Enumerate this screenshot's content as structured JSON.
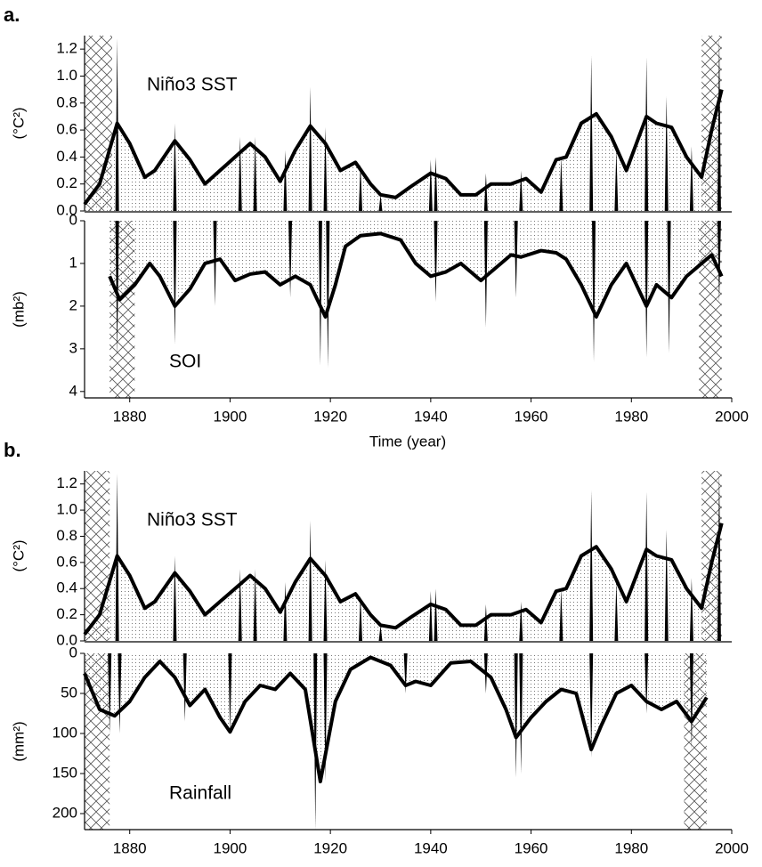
{
  "chart_data": [
    {
      "type": "line",
      "panel_label": "a.",
      "annotation": "Niño3 SST",
      "ylabel": "(°C²)",
      "xlim": [
        1871,
        2000
      ],
      "ylim": [
        0,
        1.3
      ],
      "yticks": [
        {
          "value": 0,
          "label": "0.0"
        },
        0.2,
        0.4,
        0.6,
        0.8,
        {
          "value": 1,
          "label": "1.0"
        },
        1.2
      ],
      "inverted": false,
      "color": "#000000",
      "shaded_regions": [
        [
          1871,
          1876.5
        ],
        [
          1994,
          1998
        ]
      ],
      "x": [
        1871,
        1874,
        1877.5,
        1880,
        1883,
        1885,
        1889,
        1892,
        1895,
        1898,
        1901,
        1904,
        1907,
        1910,
        1913,
        1916,
        1919,
        1922,
        1925,
        1928,
        1930,
        1933,
        1936,
        1940,
        1943,
        1946,
        1949,
        1952,
        1956,
        1959,
        1962,
        1965,
        1967,
        1970,
        1973,
        1976,
        1979,
        1983,
        1985,
        1988,
        1991,
        1994,
        1996,
        1998
      ],
      "values": [
        0.05,
        0.2,
        0.65,
        0.5,
        0.25,
        0.3,
        0.52,
        0.38,
        0.2,
        0.3,
        0.4,
        0.5,
        0.4,
        0.22,
        0.45,
        0.63,
        0.5,
        0.3,
        0.36,
        0.2,
        0.12,
        0.1,
        0.18,
        0.28,
        0.24,
        0.12,
        0.12,
        0.2,
        0.2,
        0.24,
        0.14,
        0.38,
        0.4,
        0.65,
        0.72,
        0.55,
        0.3,
        0.7,
        0.65,
        0.62,
        0.4,
        0.25,
        0.6,
        0.9
      ],
      "spike_x": [
        1877.5,
        1889,
        1902,
        1905,
        1911,
        1916,
        1919,
        1926,
        1930,
        1940,
        1941,
        1951,
        1958,
        1966,
        1972,
        1977,
        1983,
        1987,
        1992,
        1997.5
      ],
      "spike_values": [
        1.28,
        0.65,
        0.55,
        0.55,
        0.45,
        0.92,
        0.62,
        0.35,
        0.12,
        0.38,
        0.4,
        0.28,
        0.3,
        0.4,
        1.15,
        0.45,
        1.14,
        0.85,
        0.48,
        1.3
      ]
    },
    {
      "type": "line",
      "annotation": "SOI",
      "ylabel": "(mb²)",
      "xlabel": "Time (year)",
      "xlim": [
        1871,
        2000
      ],
      "ylim": [
        0,
        4.15
      ],
      "yticks": [
        0,
        1,
        2,
        3,
        4
      ],
      "xticks": [
        1880,
        1900,
        1920,
        1940,
        1960,
        1980,
        2000
      ],
      "inverted": true,
      "color": "#000000",
      "shaded_regions": [
        [
          1876,
          1881
        ],
        [
          1993.5,
          1998
        ]
      ],
      "x": [
        1876,
        1878,
        1881,
        1884,
        1886,
        1889,
        1892,
        1895,
        1898,
        1901,
        1904,
        1907,
        1910,
        1913,
        1916,
        1919,
        1921,
        1923,
        1926,
        1930,
        1934,
        1937,
        1940,
        1943,
        1946,
        1950,
        1953,
        1956,
        1958,
        1962,
        1965,
        1967,
        1970,
        1973,
        1976,
        1979,
        1983,
        1985,
        1988,
        1991,
        1994,
        1996,
        1998
      ],
      "values": [
        1.3,
        1.85,
        1.5,
        1.0,
        1.3,
        2.0,
        1.6,
        1.0,
        0.9,
        1.4,
        1.25,
        1.2,
        1.5,
        1.3,
        1.5,
        2.25,
        1.5,
        0.6,
        0.35,
        0.3,
        0.45,
        1.0,
        1.3,
        1.2,
        1.0,
        1.4,
        1.1,
        0.8,
        0.85,
        0.7,
        0.75,
        0.9,
        1.5,
        2.25,
        1.5,
        1.0,
        2.0,
        1.5,
        1.8,
        1.3,
        1.0,
        0.8,
        1.3
      ],
      "spike_x": [
        1877.5,
        1889,
        1897,
        1912,
        1918,
        1919.5,
        1941,
        1951,
        1957,
        1972.5,
        1983,
        1987.5,
        1997.5
      ],
      "spike_values": [
        3.2,
        2.9,
        2.0,
        1.8,
        3.4,
        3.45,
        1.9,
        2.5,
        1.8,
        3.3,
        3.2,
        3.1,
        1.9
      ]
    },
    {
      "type": "line",
      "panel_label": "b.",
      "annotation": "Niño3 SST",
      "ylabel": "(°C²)",
      "xlim": [
        1871,
        2000
      ],
      "ylim": [
        0,
        1.3
      ],
      "yticks": [
        {
          "value": 0,
          "label": "0.0"
        },
        0.2,
        0.4,
        0.6,
        0.8,
        {
          "value": 1,
          "label": "1.0"
        },
        1.2
      ],
      "inverted": false,
      "color": "#000000",
      "shaded_regions": [
        [
          1871,
          1876
        ],
        [
          1994,
          1998
        ]
      ],
      "x": [
        1871,
        1874,
        1877.5,
        1880,
        1883,
        1885,
        1889,
        1892,
        1895,
        1898,
        1901,
        1904,
        1907,
        1910,
        1913,
        1916,
        1919,
        1922,
        1925,
        1928,
        1930,
        1933,
        1936,
        1940,
        1943,
        1946,
        1949,
        1952,
        1956,
        1959,
        1962,
        1965,
        1967,
        1970,
        1973,
        1976,
        1979,
        1983,
        1985,
        1988,
        1991,
        1994,
        1996,
        1998
      ],
      "values": [
        0.05,
        0.2,
        0.65,
        0.5,
        0.25,
        0.3,
        0.52,
        0.38,
        0.2,
        0.3,
        0.4,
        0.5,
        0.4,
        0.22,
        0.45,
        0.63,
        0.5,
        0.3,
        0.36,
        0.2,
        0.12,
        0.1,
        0.18,
        0.28,
        0.24,
        0.12,
        0.12,
        0.2,
        0.2,
        0.24,
        0.14,
        0.38,
        0.4,
        0.65,
        0.72,
        0.55,
        0.3,
        0.7,
        0.65,
        0.62,
        0.4,
        0.25,
        0.6,
        0.9
      ],
      "spike_x": [
        1877.5,
        1889,
        1902,
        1905,
        1911,
        1916,
        1919,
        1926,
        1930,
        1940,
        1941,
        1951,
        1958,
        1966,
        1972,
        1977,
        1983,
        1987,
        1992,
        1997.5
      ],
      "spike_values": [
        1.28,
        0.65,
        0.55,
        0.55,
        0.45,
        0.92,
        0.62,
        0.35,
        0.12,
        0.38,
        0.4,
        0.28,
        0.3,
        0.4,
        1.15,
        0.45,
        1.14,
        0.85,
        0.48,
        1.3
      ]
    },
    {
      "type": "line",
      "annotation": "Rainfall",
      "ylabel": "(mm²)",
      "xlim": [
        1871,
        2000
      ],
      "ylim": [
        0,
        220
      ],
      "yticks": [
        0,
        50,
        100,
        150,
        200
      ],
      "xticks": [
        1880,
        1900,
        1920,
        1940,
        1960,
        1980,
        2000
      ],
      "inverted": true,
      "color": "#000000",
      "shaded_regions": [
        [
          1871,
          1876
        ],
        [
          1990.5,
          1995
        ]
      ],
      "x": [
        1871,
        1874,
        1877,
        1880,
        1883,
        1886,
        1889,
        1892,
        1895,
        1898,
        1900,
        1903,
        1906,
        1909,
        1912,
        1915,
        1918,
        1921,
        1924,
        1928,
        1932,
        1935,
        1937,
        1940,
        1944,
        1948,
        1952,
        1955,
        1957,
        1960,
        1963,
        1966,
        1969,
        1972,
        1974,
        1977,
        1980,
        1983,
        1986,
        1989,
        1992,
        1995
      ],
      "values": [
        25,
        70,
        78,
        60,
        30,
        10,
        30,
        65,
        45,
        80,
        98,
        60,
        40,
        45,
        25,
        45,
        160,
        60,
        20,
        5,
        15,
        40,
        35,
        40,
        12,
        10,
        30,
        70,
        105,
        80,
        60,
        45,
        50,
        120,
        90,
        50,
        40,
        60,
        70,
        60,
        85,
        55
      ],
      "spike_x": [
        1876,
        1878,
        1891,
        1900,
        1917,
        1919,
        1935,
        1951,
        1957,
        1958,
        1972,
        1983,
        1992
      ],
      "spike_values": [
        100,
        100,
        85,
        100,
        220,
        160,
        50,
        50,
        155,
        150,
        130,
        75,
        120
      ]
    }
  ]
}
